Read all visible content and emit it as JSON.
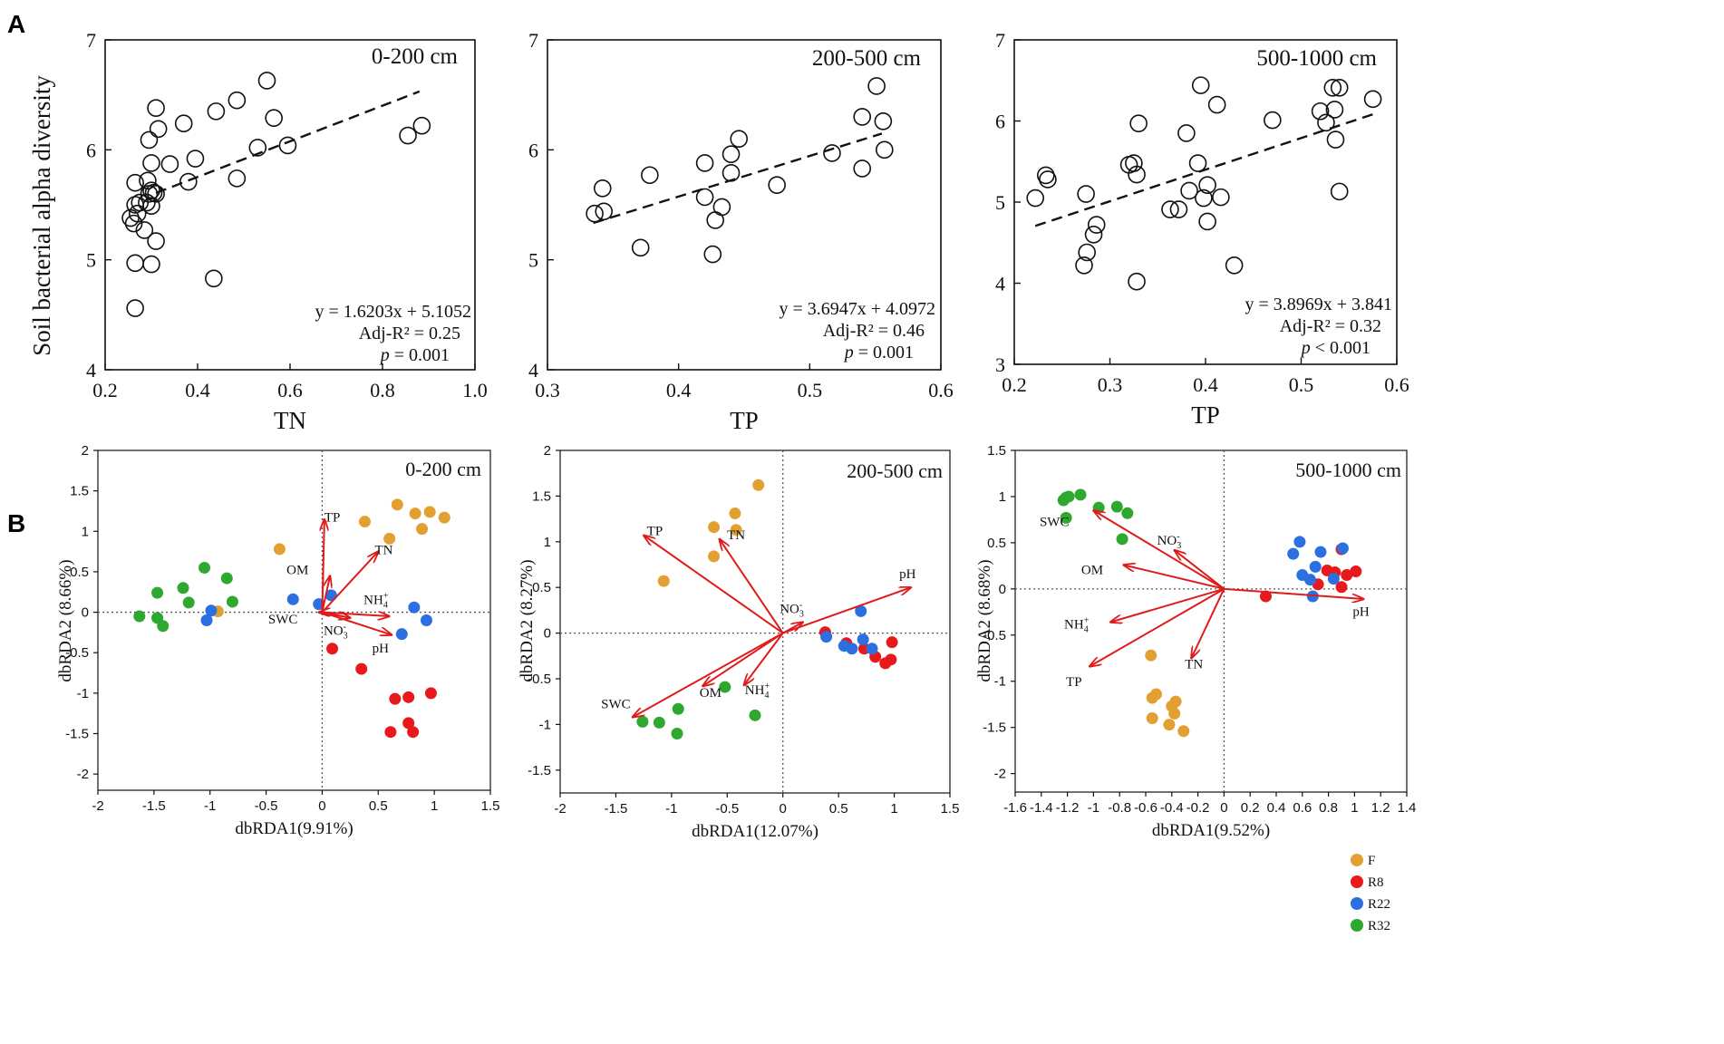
{
  "panel_labels": {
    "a": "A",
    "b": "B"
  },
  "colors": {
    "F": "#E3A032",
    "R8": "#E8191C",
    "R22": "#2B6FE0",
    "R32": "#2EA82E",
    "arrow": "#E01A1A"
  },
  "legend": [
    {
      "group": "F",
      "label": "F"
    },
    {
      "group": "R8",
      "label": "R8"
    },
    {
      "group": "R22",
      "label": "R22"
    },
    {
      "group": "R32",
      "label": "R32"
    }
  ],
  "chart_data": [
    {
      "type": "scatter",
      "id": "a1",
      "title": "0-200 cm",
      "xlabel": "TN",
      "ylabel": "Soil bacterial alpha diversity",
      "xlim": [
        0.2,
        1.0
      ],
      "ylim": [
        4,
        7
      ],
      "xticks": [
        "0.2",
        "0.4",
        "0.6",
        "0.8",
        "1.0"
      ],
      "yticks": [
        "4",
        "5",
        "6",
        "7"
      ],
      "fit": {
        "slope": 1.6203,
        "intercept": 5.1052,
        "x_range": [
          0.31,
          0.88
        ]
      },
      "equation": "y = 1.6203x + 5.1052",
      "adj_r2": "Adj-R² = 0.25",
      "p_label": "p",
      "p_rest": " = 0.001",
      "points": [
        [
          0.255,
          5.38
        ],
        [
          0.262,
          5.33
        ],
        [
          0.265,
          5.5
        ],
        [
          0.265,
          5.7
        ],
        [
          0.27,
          5.42
        ],
        [
          0.275,
          5.52
        ],
        [
          0.265,
          4.97
        ],
        [
          0.265,
          4.56
        ],
        [
          0.285,
          5.27
        ],
        [
          0.29,
          5.52
        ],
        [
          0.295,
          5.6
        ],
        [
          0.295,
          6.09
        ],
        [
          0.3,
          5.63
        ],
        [
          0.3,
          5.88
        ],
        [
          0.3,
          5.49
        ],
        [
          0.305,
          5.61
        ],
        [
          0.31,
          5.6
        ],
        [
          0.3,
          4.96
        ],
        [
          0.31,
          5.17
        ],
        [
          0.31,
          6.38
        ],
        [
          0.315,
          6.19
        ],
        [
          0.292,
          5.72
        ],
        [
          0.34,
          5.87
        ],
        [
          0.37,
          6.24
        ],
        [
          0.38,
          5.71
        ],
        [
          0.395,
          5.92
        ],
        [
          0.435,
          4.83
        ],
        [
          0.44,
          6.35
        ],
        [
          0.485,
          5.74
        ],
        [
          0.485,
          6.45
        ],
        [
          0.53,
          6.02
        ],
        [
          0.55,
          6.63
        ],
        [
          0.565,
          6.29
        ],
        [
          0.595,
          6.04
        ],
        [
          0.855,
          6.13
        ],
        [
          0.885,
          6.22
        ]
      ]
    },
    {
      "type": "scatter",
      "id": "a2",
      "title": "200-500 cm",
      "xlabel": "TP",
      "ylabel": "",
      "xlim": [
        0.3,
        0.6
      ],
      "ylim": [
        4,
        7
      ],
      "xticks": [
        "0.3",
        "0.4",
        "0.5",
        "0.6"
      ],
      "yticks": [
        "4",
        "5",
        "6",
        "7"
      ],
      "fit": {
        "slope": 3.6947,
        "intercept": 4.0972,
        "x_range": [
          0.335,
          0.555
        ]
      },
      "equation": "y = 3.6947x + 4.0972",
      "adj_r2": "Adj-R² = 0.46",
      "p_label": "p",
      "p_rest": " = 0.001",
      "points": [
        [
          0.336,
          5.42
        ],
        [
          0.343,
          5.44
        ],
        [
          0.342,
          5.65
        ],
        [
          0.371,
          5.11
        ],
        [
          0.378,
          5.77
        ],
        [
          0.42,
          5.57
        ],
        [
          0.42,
          5.88
        ],
        [
          0.426,
          5.05
        ],
        [
          0.428,
          5.36
        ],
        [
          0.433,
          5.48
        ],
        [
          0.44,
          5.79
        ],
        [
          0.44,
          5.96
        ],
        [
          0.446,
          6.1
        ],
        [
          0.475,
          5.68
        ],
        [
          0.517,
          5.97
        ],
        [
          0.54,
          5.83
        ],
        [
          0.54,
          6.3
        ],
        [
          0.551,
          6.58
        ],
        [
          0.556,
          6.26
        ],
        [
          0.557,
          6.0
        ]
      ]
    },
    {
      "type": "scatter",
      "id": "a3",
      "title": "500-1000 cm",
      "xlabel": "TP",
      "ylabel": "",
      "xlim": [
        0.2,
        0.6
      ],
      "ylim": [
        3,
        7
      ],
      "xticks": [
        "0.2",
        "0.3",
        "0.4",
        "0.5",
        "0.6"
      ],
      "yticks": [
        "3",
        "4",
        "5",
        "6",
        "7"
      ],
      "fit": {
        "slope": 3.8969,
        "intercept": 3.841,
        "x_range": [
          0.222,
          0.575
        ]
      },
      "equation": "y = 3.8969x + 3.841",
      "adj_r2": "Adj-R² = 0.32",
      "p_label": "p",
      "p_rest": " < 0.001",
      "points": [
        [
          0.222,
          5.05
        ],
        [
          0.233,
          5.33
        ],
        [
          0.235,
          5.28
        ],
        [
          0.273,
          4.22
        ],
        [
          0.275,
          5.1
        ],
        [
          0.276,
          4.38
        ],
        [
          0.283,
          4.6
        ],
        [
          0.286,
          4.72
        ],
        [
          0.32,
          5.46
        ],
        [
          0.325,
          5.48
        ],
        [
          0.328,
          5.34
        ],
        [
          0.328,
          4.02
        ],
        [
          0.33,
          5.97
        ],
        [
          0.363,
          4.91
        ],
        [
          0.372,
          4.91
        ],
        [
          0.38,
          5.85
        ],
        [
          0.383,
          5.14
        ],
        [
          0.392,
          5.48
        ],
        [
          0.395,
          6.44
        ],
        [
          0.398,
          5.05
        ],
        [
          0.402,
          4.76
        ],
        [
          0.402,
          5.21
        ],
        [
          0.412,
          6.2
        ],
        [
          0.416,
          5.06
        ],
        [
          0.43,
          4.22
        ],
        [
          0.47,
          6.01
        ],
        [
          0.52,
          6.12
        ],
        [
          0.526,
          5.98
        ],
        [
          0.533,
          6.41
        ],
        [
          0.535,
          6.14
        ],
        [
          0.536,
          5.77
        ],
        [
          0.54,
          6.41
        ],
        [
          0.54,
          5.13
        ],
        [
          0.575,
          6.27
        ]
      ]
    },
    {
      "type": "scatter",
      "id": "b1",
      "title": "0-200 cm",
      "xlabel_main": "dbRDA1",
      "xlabel_pct": "(9.91%)",
      "ylabel": "dbRDA2 (8.66%)",
      "xlim": [
        -2,
        1.5
      ],
      "ylim": [
        -2.2,
        2
      ],
      "xticks": [
        "-2",
        "-1.5",
        "-1",
        "-0.5",
        "0",
        "0.5",
        "1",
        "1.5"
      ],
      "yticks": [
        "-2",
        "-1.5",
        "-1",
        "-0.5",
        "0",
        "0.5",
        "1",
        "1.5",
        "2"
      ],
      "arrows": [
        {
          "name": "TP",
          "sup": "",
          "sub": "",
          "x": 0.02,
          "y": 1.15,
          "lx": 0.09,
          "ly": 1.12
        },
        {
          "name": "TN",
          "sup": "",
          "sub": "",
          "x": 0.5,
          "y": 0.75,
          "lx": 0.55,
          "ly": 0.72
        },
        {
          "name": "OM",
          "sup": "",
          "sub": "",
          "x": 0.07,
          "y": 0.45,
          "lx": -0.22,
          "ly": 0.47
        },
        {
          "name": "SWC",
          "sup": "",
          "sub": "",
          "x": -0.03,
          "y": 0.0,
          "lx": -0.35,
          "ly": -0.14
        },
        {
          "name": "NH",
          "sup": "+",
          "sub": "4",
          "x": 0.6,
          "y": -0.05,
          "lx": 0.48,
          "ly": 0.1
        },
        {
          "name": "NO",
          "sup": "-",
          "sub": "3",
          "x": 0.25,
          "y": -0.07,
          "lx": 0.12,
          "ly": -0.28
        },
        {
          "name": "pH",
          "sup": "",
          "sub": "",
          "x": 0.62,
          "y": -0.28,
          "lx": 0.52,
          "ly": -0.5
        }
      ],
      "points": {
        "F": [
          [
            -0.38,
            0.78
          ],
          [
            0.38,
            1.12
          ],
          [
            0.6,
            0.91
          ],
          [
            0.67,
            1.33
          ],
          [
            0.83,
            1.22
          ],
          [
            0.89,
            1.03
          ],
          [
            0.96,
            1.24
          ],
          [
            1.09,
            1.17
          ],
          [
            -0.93,
            0.01
          ]
        ],
        "R8": [
          [
            0.09,
            -0.45
          ],
          [
            0.35,
            -0.7
          ],
          [
            0.65,
            -1.07
          ],
          [
            0.77,
            -1.05
          ],
          [
            0.97,
            -1.0
          ],
          [
            0.77,
            -1.37
          ],
          [
            0.61,
            -1.48
          ],
          [
            0.81,
            -1.48
          ]
        ],
        "R22": [
          [
            -0.26,
            0.16
          ],
          [
            -0.03,
            0.1
          ],
          [
            0.08,
            0.21
          ],
          [
            -1.03,
            -0.1
          ],
          [
            -0.99,
            0.02
          ],
          [
            0.82,
            0.06
          ],
          [
            0.93,
            -0.1
          ],
          [
            0.71,
            -0.27
          ]
        ],
        "R32": [
          [
            -1.63,
            -0.05
          ],
          [
            -1.47,
            0.24
          ],
          [
            -1.47,
            -0.07
          ],
          [
            -1.42,
            -0.17
          ],
          [
            -1.24,
            0.3
          ],
          [
            -1.19,
            0.12
          ],
          [
            -1.05,
            0.55
          ],
          [
            -0.85,
            0.42
          ],
          [
            -0.8,
            0.13
          ]
        ]
      }
    },
    {
      "type": "scatter",
      "id": "b2",
      "title": "200-500 cm",
      "xlabel_main": "dbRDA1",
      "xlabel_pct": "(12.07%)",
      "ylabel": "dbRDA2 (8.27%)",
      "xlim": [
        -2,
        1.5
      ],
      "ylim": [
        -1.75,
        2
      ],
      "xticks": [
        "-2",
        "-1.5",
        "-1",
        "-0.5",
        "0",
        "0.5",
        "1",
        "1.5"
      ],
      "yticks": [
        "-1.5",
        "-1",
        "-0.5",
        "0",
        "0.5",
        "1",
        "1.5",
        "2"
      ],
      "arrows": [
        {
          "name": "TP",
          "sup": "",
          "sub": "",
          "x": -1.25,
          "y": 1.07,
          "lx": -1.15,
          "ly": 1.07
        },
        {
          "name": "TN",
          "sup": "",
          "sub": "",
          "x": -0.57,
          "y": 1.03,
          "lx": -0.42,
          "ly": 1.03
        },
        {
          "name": "pH",
          "sup": "",
          "sub": "",
          "x": 1.15,
          "y": 0.5,
          "lx": 1.12,
          "ly": 0.6
        },
        {
          "name": "NO",
          "sup": "-",
          "sub": "3",
          "x": 0.18,
          "y": 0.12,
          "lx": 0.08,
          "ly": 0.22
        },
        {
          "name": "SWC",
          "sup": "",
          "sub": "",
          "x": -1.35,
          "y": -0.92,
          "lx": -1.5,
          "ly": -0.82
        },
        {
          "name": "OM",
          "sup": "",
          "sub": "",
          "x": -0.72,
          "y": -0.58,
          "lx": -0.65,
          "ly": -0.7
        },
        {
          "name": "NH",
          "sup": "+",
          "sub": "4",
          "x": -0.35,
          "y": -0.57,
          "lx": -0.23,
          "ly": -0.67
        }
      ],
      "points": {
        "F": [
          [
            -1.07,
            0.57
          ],
          [
            -0.62,
            0.84
          ],
          [
            -0.62,
            1.16
          ],
          [
            -0.42,
            1.13
          ],
          [
            -0.43,
            1.31
          ],
          [
            -0.22,
            1.62
          ]
        ],
        "R8": [
          [
            0.38,
            0.01
          ],
          [
            0.57,
            -0.11
          ],
          [
            0.73,
            -0.17
          ],
          [
            0.83,
            -0.26
          ],
          [
            0.92,
            -0.33
          ],
          [
            0.97,
            -0.29
          ],
          [
            0.98,
            -0.1
          ]
        ],
        "R22": [
          [
            0.39,
            -0.04
          ],
          [
            0.55,
            -0.14
          ],
          [
            0.62,
            -0.17
          ],
          [
            0.72,
            -0.07
          ],
          [
            0.8,
            -0.17
          ],
          [
            0.7,
            0.24
          ]
        ],
        "R32": [
          [
            -1.26,
            -0.97
          ],
          [
            -1.11,
            -0.98
          ],
          [
            -0.94,
            -0.83
          ],
          [
            -0.95,
            -1.1
          ],
          [
            -0.52,
            -0.59
          ],
          [
            -0.25,
            -0.9
          ]
        ]
      }
    },
    {
      "type": "scatter",
      "id": "b3",
      "title": "500-1000 cm",
      "xlabel_main": "dbRDA1",
      "xlabel_pct": "(9.52%)",
      "ylabel": "dbRDA2 (8.68%)",
      "xlim": [
        -1.6,
        1.4
      ],
      "ylim": [
        -2.2,
        1.5
      ],
      "xticks": [
        "-1.6",
        "-1.4",
        "-1.2",
        "-1",
        "-0.8",
        "-0.6",
        "-0.4",
        "-0.2",
        "0",
        "0.2",
        "0.4",
        "0.6",
        "0.8",
        "1",
        "1.2",
        "1.4"
      ],
      "yticks": [
        "-2",
        "-1.5",
        "-1",
        "-0.5",
        "0",
        "0.5",
        "1",
        "1.5"
      ],
      "arrows": [
        {
          "name": "SWC",
          "sup": "",
          "sub": "",
          "x": -1.0,
          "y": 0.85,
          "lx": -1.3,
          "ly": 0.68
        },
        {
          "name": "NO",
          "sup": "-",
          "sub": "3",
          "x": -0.38,
          "y": 0.42,
          "lx": -0.42,
          "ly": 0.48
        },
        {
          "name": "OM",
          "sup": "",
          "sub": "",
          "x": -0.77,
          "y": 0.26,
          "lx": -1.01,
          "ly": 0.16
        },
        {
          "name": "pH",
          "sup": "",
          "sub": "",
          "x": 1.07,
          "y": -0.11,
          "lx": 1.05,
          "ly": -0.29
        },
        {
          "name": "NH",
          "sup": "+",
          "sub": "4",
          "x": -0.87,
          "y": -0.36,
          "lx": -1.13,
          "ly": -0.43
        },
        {
          "name": "TN",
          "sup": "",
          "sub": "",
          "x": -0.25,
          "y": -0.75,
          "lx": -0.23,
          "ly": -0.86
        },
        {
          "name": "TP",
          "sup": "",
          "sub": "",
          "x": -1.03,
          "y": -0.84,
          "lx": -1.15,
          "ly": -1.05
        }
      ],
      "points": {
        "F": [
          [
            -0.56,
            -0.72
          ],
          [
            -0.55,
            -1.18
          ],
          [
            -0.52,
            -1.14
          ],
          [
            -0.55,
            -1.4
          ],
          [
            -0.42,
            -1.47
          ],
          [
            -0.4,
            -1.27
          ],
          [
            -0.37,
            -1.22
          ],
          [
            -0.38,
            -1.35
          ],
          [
            -0.31,
            -1.54
          ]
        ],
        "R8": [
          [
            0.32,
            -0.08
          ],
          [
            0.72,
            0.05
          ],
          [
            0.79,
            0.2
          ],
          [
            0.85,
            0.18
          ],
          [
            0.9,
            0.43
          ],
          [
            0.94,
            0.15
          ],
          [
            0.9,
            0.02
          ],
          [
            1.01,
            0.19
          ]
        ],
        "R22": [
          [
            0.53,
            0.38
          ],
          [
            0.58,
            0.51
          ],
          [
            0.6,
            0.15
          ],
          [
            0.66,
            0.1
          ],
          [
            0.7,
            0.24
          ],
          [
            0.74,
            0.4
          ],
          [
            0.84,
            0.11
          ],
          [
            0.91,
            0.44
          ],
          [
            0.68,
            -0.08
          ]
        ],
        "R32": [
          [
            -1.23,
            0.96
          ],
          [
            -1.21,
            0.99
          ],
          [
            -1.19,
            1.0
          ],
          [
            -1.21,
            0.77
          ],
          [
            -1.1,
            1.02
          ],
          [
            -0.96,
            0.88
          ],
          [
            -0.82,
            0.89
          ],
          [
            -0.74,
            0.82
          ],
          [
            -0.78,
            0.54
          ]
        ]
      }
    }
  ]
}
